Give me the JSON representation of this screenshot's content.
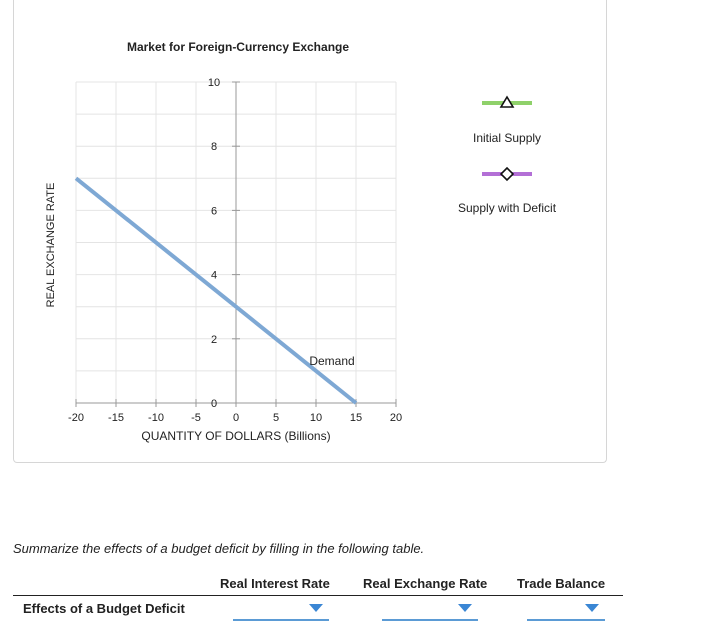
{
  "chart_data": {
    "type": "line",
    "title": "Market for Foreign-Currency Exchange",
    "xlabel": "QUANTITY OF DOLLARS (Billions)",
    "ylabel": "REAL EXCHANGE RATE",
    "xlim": [
      -20,
      20
    ],
    "ylim": [
      0,
      10
    ],
    "xticks": [
      -20,
      -15,
      -10,
      -5,
      0,
      5,
      10,
      15,
      20
    ],
    "yticks": [
      0,
      2,
      4,
      6,
      8,
      10
    ],
    "grid": true,
    "series": [
      {
        "name": "Demand",
        "color": "#7ea8d4",
        "points": [
          [
            -20,
            7
          ],
          [
            15,
            0
          ]
        ]
      }
    ],
    "legend": [
      {
        "name": "Initial Supply",
        "color": "#8fd16a",
        "marker": "triangle"
      },
      {
        "name": "Supply with Deficit",
        "color": "#b36fd6",
        "marker": "diamond"
      }
    ],
    "legend_position": "right"
  },
  "instructions": "Summarize the effects of a budget deficit by filling in the following table.",
  "table": {
    "columns": [
      "Real Interest Rate",
      "Real Exchange Rate",
      "Trade Balance"
    ],
    "row_label": "Effects of a Budget Deficit",
    "values": [
      "",
      "",
      ""
    ]
  }
}
